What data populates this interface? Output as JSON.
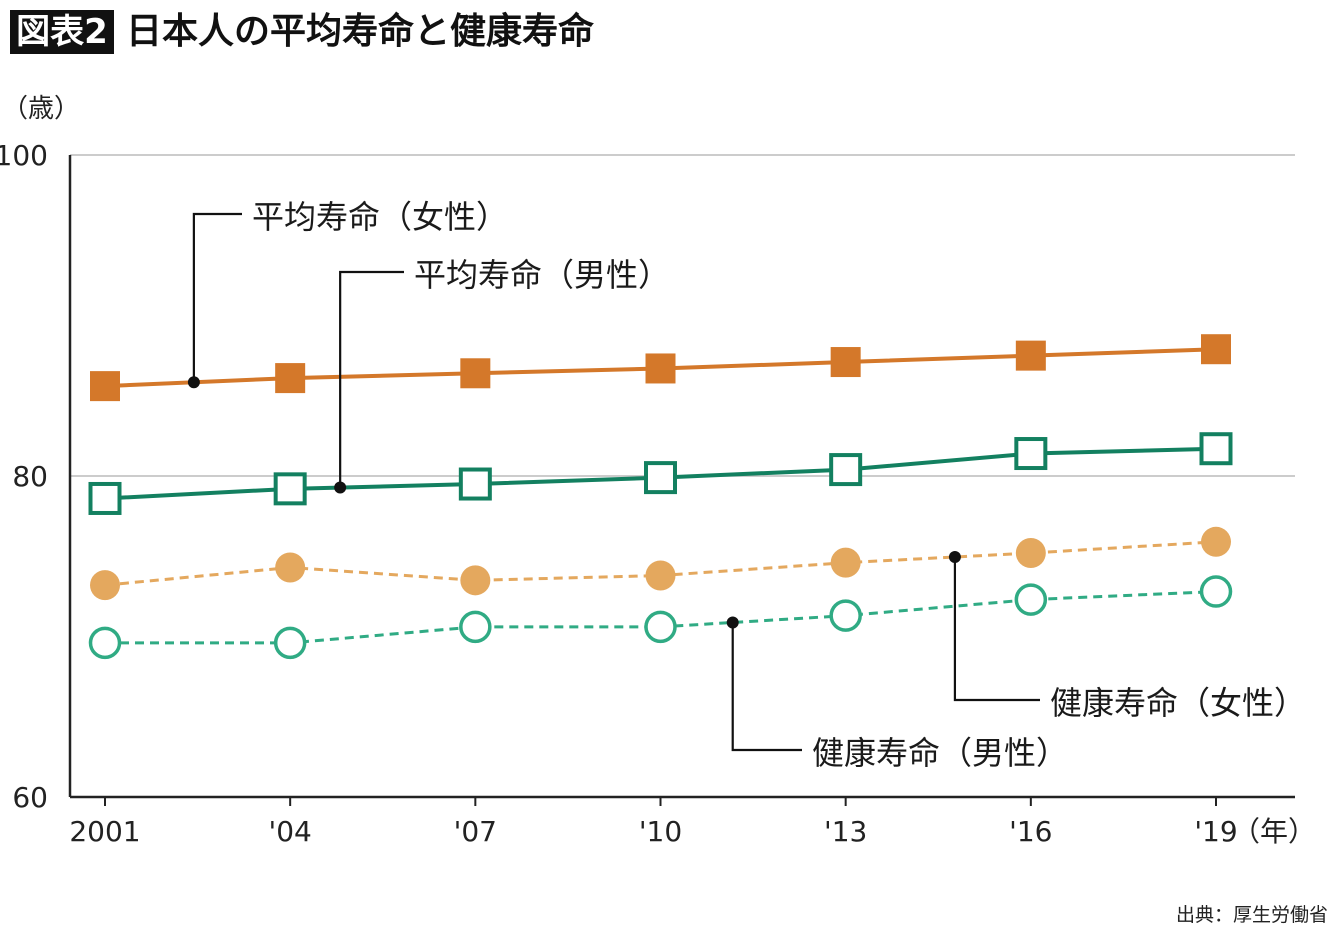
{
  "header": {
    "badge": "図表2",
    "title": "日本人の平均寿命と健康寿命"
  },
  "source": "出典：厚生労働省",
  "colors": {
    "orange": "#d4782a",
    "light_orange": "#e4a85e",
    "green": "#138060",
    "light_green": "#30ab84",
    "axis": "#222222",
    "grid": "#bbbbbb"
  },
  "chart_data": {
    "type": "line",
    "title": "日本人の平均寿命と健康寿命",
    "ylabel": "（歳）",
    "xlabel": "（年）",
    "ylim": [
      60,
      100
    ],
    "yticks": [
      60,
      80,
      100
    ],
    "grid": true,
    "x": [
      "2001",
      "'04",
      "'07",
      "'10",
      "'13",
      "'16",
      "'19"
    ],
    "series": [
      {
        "name": "平均寿命（女性）",
        "values": [
          85.6,
          86.1,
          86.4,
          86.7,
          87.1,
          87.5,
          87.9
        ],
        "marker": "filled-square",
        "line": "solid",
        "color": "#d4782a"
      },
      {
        "name": "平均寿命（男性）",
        "values": [
          78.6,
          79.2,
          79.5,
          79.9,
          80.4,
          81.4,
          81.7
        ],
        "marker": "open-square",
        "line": "solid",
        "color": "#138060"
      },
      {
        "name": "健康寿命（女性）",
        "values": [
          73.2,
          74.3,
          73.5,
          73.8,
          74.6,
          75.2,
          75.9
        ],
        "marker": "filled-circle",
        "line": "dashed",
        "color": "#e4a85e"
      },
      {
        "name": "健康寿命（男性）",
        "values": [
          69.6,
          69.6,
          70.6,
          70.6,
          71.3,
          72.3,
          72.8
        ],
        "marker": "open-circle",
        "line": "dashed",
        "color": "#30ab84"
      }
    ]
  }
}
